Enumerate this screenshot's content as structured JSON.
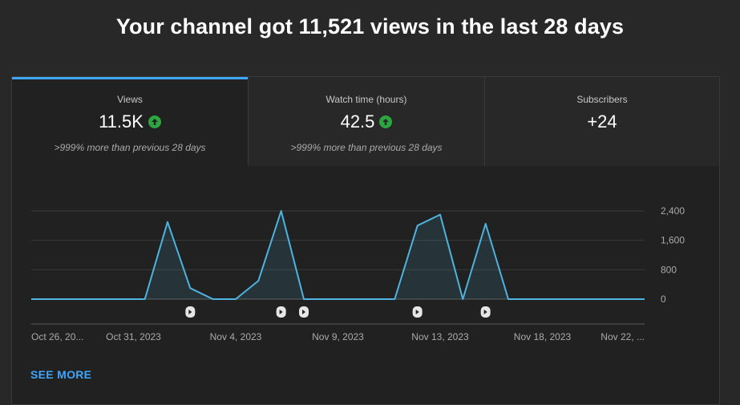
{
  "headline": "Your channel got 11,521 views in the last 28 days",
  "metrics": [
    {
      "label": "Views",
      "value": "11.5K",
      "trend": "up",
      "note": ">999% more than previous 28 days"
    },
    {
      "label": "Watch time (hours)",
      "value": "42.5",
      "trend": "up",
      "note": ">999% more than previous 28 days"
    },
    {
      "label": "Subscribers",
      "value": "+24",
      "trend": "",
      "note": ""
    }
  ],
  "see_more": "SEE MORE",
  "colors": {
    "accent": "#3ea6ff",
    "up": "#2ba640",
    "line": "#4fb3df"
  },
  "chart_data": {
    "type": "area",
    "series": [
      {
        "values": [
          0,
          0,
          0,
          0,
          0,
          0,
          2100,
          300,
          0,
          0,
          500,
          2400,
          0,
          0,
          0,
          0,
          0,
          2000,
          2300,
          0,
          2050,
          0,
          0,
          0,
          0,
          0,
          0,
          0
        ]
      }
    ],
    "x_labels": [
      "Oct 26, 20...",
      "Oct 31, 2023",
      "Nov 4, 2023",
      "Nov 9, 2023",
      "Nov 13, 2023",
      "Nov 18, 2023",
      "Nov 22, ..."
    ],
    "y_ticks": [
      {
        "value": 0,
        "label": "0"
      },
      {
        "value": 800,
        "label": "800"
      },
      {
        "value": 1600,
        "label": "1,600"
      },
      {
        "value": 2400,
        "label": "2,400"
      }
    ],
    "ylim": [
      0,
      2400
    ],
    "short_markers_at": [
      7,
      11,
      12,
      17,
      20
    ]
  }
}
